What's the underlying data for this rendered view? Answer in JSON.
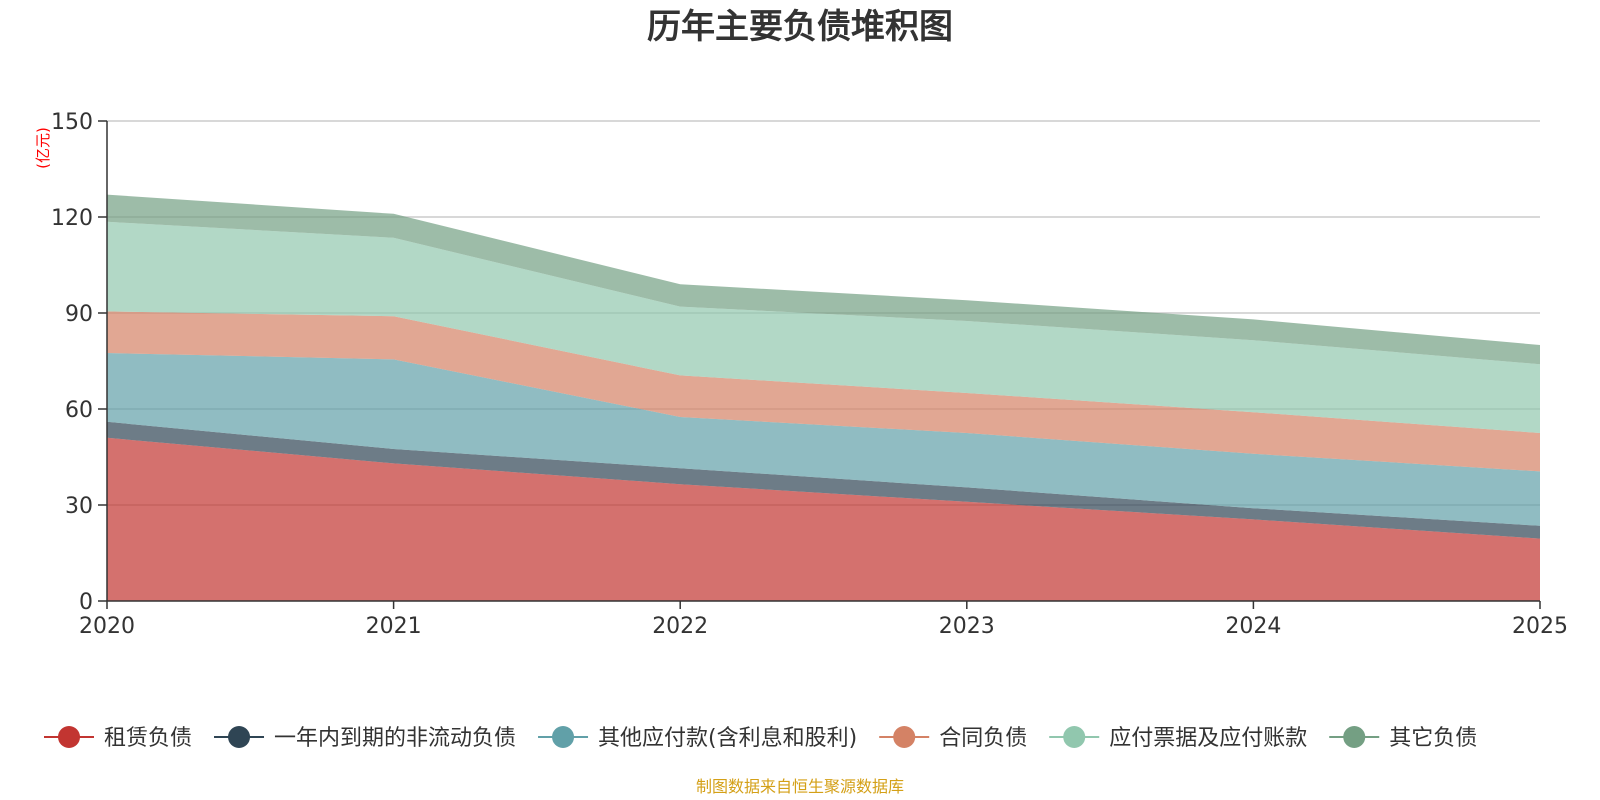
{
  "chart_data": {
    "type": "area",
    "stacked": true,
    "title": "历年主要负债堆积图",
    "ylabel": "(亿元)",
    "xlabel": "",
    "x": [
      "2020",
      "2021",
      "2022",
      "2023",
      "2024",
      "2025"
    ],
    "ylim": [
      0,
      150
    ],
    "yticks": [
      0,
      30,
      60,
      90,
      120,
      150
    ],
    "grid": true,
    "legend_position": "bottom",
    "series": [
      {
        "name": "租赁负债",
        "color": "#c23531",
        "values": [
          51,
          43,
          36.5,
          31,
          25.5,
          19.5
        ]
      },
      {
        "name": "一年内到期的非流动负债",
        "color": "#2f4554",
        "values": [
          5,
          4.5,
          5,
          4.5,
          3.5,
          4
        ]
      },
      {
        "name": "其他应付款(含利息和股利)",
        "color": "#61a0a8",
        "values": [
          21.5,
          28,
          16,
          17,
          17,
          17
        ]
      },
      {
        "name": "合同负债",
        "color": "#d48265",
        "values": [
          13,
          13.5,
          13,
          12.5,
          13,
          12
        ]
      },
      {
        "name": "应付票据及应付账款",
        "color": "#91c7ae",
        "values": [
          28,
          24.5,
          21.5,
          22.5,
          22.5,
          21.5
        ]
      },
      {
        "name": "其它负债",
        "color": "#749f83",
        "values": [
          8.5,
          7.5,
          7,
          6.5,
          6.5,
          6
        ]
      }
    ]
  },
  "footer": {
    "source": "制图数据来自恒生聚源数据库",
    "source_color": "#d4a017"
  },
  "colors": {
    "unit_label": "#ff0000",
    "axis": "#333333",
    "grid": "#cccccc"
  }
}
